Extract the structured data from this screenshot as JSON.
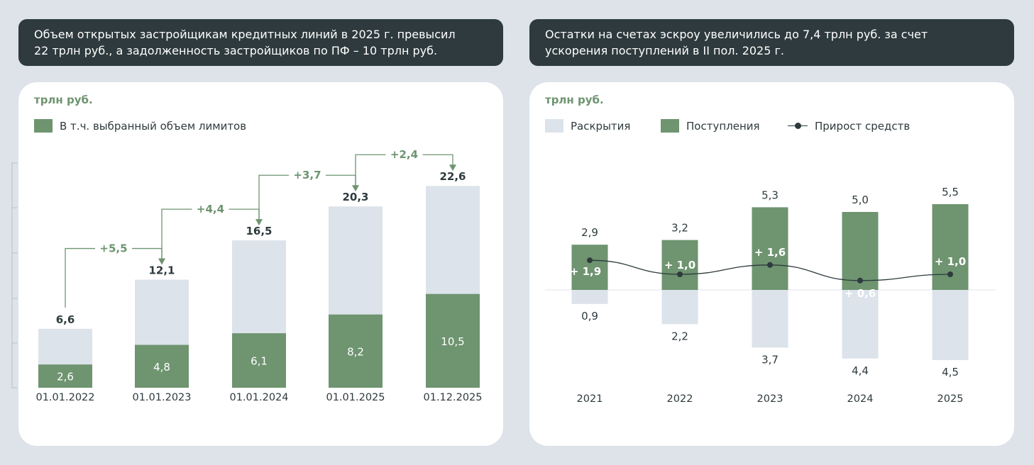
{
  "left_header": {
    "line1": "Объем открытых застройщикам кредитных линий в 2025 г. превысил",
    "line2": "22 трлн руб., а задолженность застройщиков по ПФ – 10 трлн руб."
  },
  "right_header": {
    "line1": "Остатки на счетах эскроу увеличились до 7,4 трлн руб. за счет",
    "line2": "ускорения поступлений в II пол. 2025 г."
  },
  "left_card": {
    "unit": "трлн руб.",
    "legend_selected": "В т.ч. выбранный объем лимитов"
  },
  "right_card": {
    "unit": "трлн руб.",
    "legend_disclosures": "Раскрытия",
    "legend_inflows": "Поступления",
    "legend_growth": "Прирост средств"
  },
  "colors": {
    "green": "#6e9470",
    "light": "#dce3ea",
    "dark": "#2e3a3d",
    "header": "#2e3a3d"
  },
  "chart_data": [
    {
      "type": "bar",
      "title": "Объем открытых кредитных линий",
      "unit": "трлн руб.",
      "categories": [
        "01.01.2022",
        "01.01.2023",
        "01.01.2024",
        "01.01.2025",
        "01.12.2025"
      ],
      "totals": [
        6.6,
        12.1,
        16.5,
        20.3,
        22.6
      ],
      "total_labels": [
        "6,6",
        "12,1",
        "16,5",
        "20,3",
        "22,6"
      ],
      "series": [
        {
          "name": "В т.ч. выбранный объем лимитов",
          "values": [
            2.6,
            4.8,
            6.1,
            8.2,
            10.5
          ],
          "labels": [
            "2,6",
            "4,8",
            "6,1",
            "8,2",
            "10,5"
          ]
        }
      ],
      "increments": [
        "+5,5",
        "+4,4",
        "+3,7",
        "+2,4"
      ],
      "ylim": [
        0,
        25
      ]
    },
    {
      "type": "bar",
      "title": "Остатки на счетах эскроу",
      "unit": "трлн руб.",
      "categories": [
        "2021",
        "2022",
        "2023",
        "2024",
        "2025"
      ],
      "series": [
        {
          "name": "Поступления",
          "values": [
            2.9,
            3.2,
            5.3,
            5.0,
            5.5
          ],
          "labels": [
            "2,9",
            "3,2",
            "5,3",
            "5,0",
            "5,5"
          ]
        },
        {
          "name": "Раскрытия",
          "values": [
            -0.9,
            -2.2,
            -3.7,
            -4.4,
            -4.5
          ],
          "labels": [
            "0,9",
            "2,2",
            "3,7",
            "4,4",
            "4,5"
          ]
        },
        {
          "name": "Прирост средств",
          "type": "line",
          "values": [
            1.9,
            1.0,
            1.6,
            0.6,
            1.0
          ],
          "labels": [
            "+ 1,9",
            "+ 1,0",
            "+ 1,6",
            "+ 0,6",
            "+ 1,0"
          ]
        }
      ],
      "ylim": [
        -5,
        7
      ]
    }
  ]
}
